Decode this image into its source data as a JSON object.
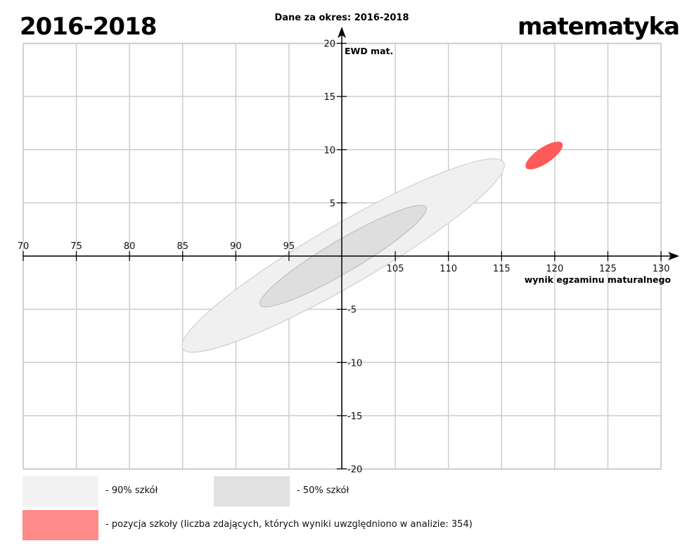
{
  "header": {
    "period": "2016-2018",
    "subject": "matematyka"
  },
  "chart_data": {
    "type": "scatter",
    "title": "Dane za okres: 2016-2018",
    "xlabel": "wynik egzaminu maturalnego",
    "ylabel": "EWD mat.",
    "xlim": [
      70,
      130
    ],
    "ylim": [
      -20,
      20
    ],
    "grid": true,
    "xticks": [
      70,
      75,
      80,
      85,
      90,
      95,
      105,
      110,
      115,
      120,
      125,
      130
    ],
    "xtick_labels": [
      "70",
      "75",
      "80",
      "85",
      "90",
      "95",
      "105",
      "110",
      "115",
      "120",
      "125",
      "130"
    ],
    "yticks": [
      20,
      15,
      10,
      5,
      -5,
      -10,
      -15,
      -20
    ],
    "ytick_labels": [
      "20",
      "15",
      "10",
      "5",
      "-5",
      "-10",
      "-15",
      "-20"
    ],
    "regions": [
      {
        "name": "90% szkół",
        "center": [
          100,
          0
        ],
        "end_low": [
          85,
          -8.7
        ],
        "end_high": [
          115.2,
          8.8
        ],
        "vertical_halfwidth": 3.3,
        "color": "#f0f0f0",
        "stroke": "#c8c8c8"
      },
      {
        "name": "50% szkół",
        "center": [
          100,
          0
        ],
        "end_low": [
          92.3,
          -4.6
        ],
        "end_high": [
          107.9,
          4.6
        ],
        "vertical_halfwidth": 1.75,
        "color": "#dedede",
        "stroke": "#b8b8b8"
      }
    ],
    "school": {
      "center": [
        118.9,
        9.5
      ],
      "end_low": [
        117.3,
        8.3
      ],
      "end_high": [
        120.7,
        10.6
      ],
      "vertical_halfwidth": 0.9,
      "color": "#ff5a5a"
    },
    "legend": [
      {
        "label": "- 90% szkół",
        "color": "#f2f2f2"
      },
      {
        "label": "- 50% szkół",
        "color": "#e1e1e1"
      },
      {
        "label": "- pozycja szkoły (liczba zdających, których wyniki uwzględniono w analizie: 354)",
        "color": "#ff8a8a"
      }
    ],
    "legend_position": "bottom"
  }
}
